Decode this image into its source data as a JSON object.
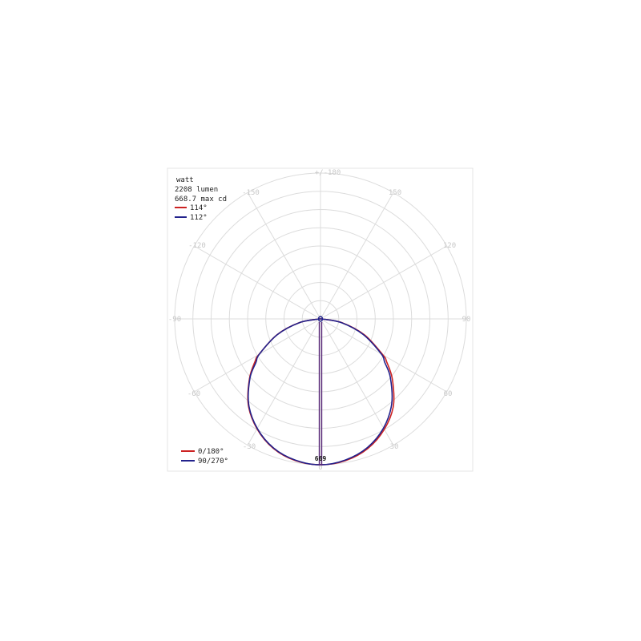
{
  "chart_data": {
    "type": "polar",
    "info": {
      "line1": "watt",
      "line2": "2208 lumen",
      "line3": "668.7 max cd"
    },
    "beam_legend": [
      {
        "label": "114°",
        "color": "#cc2222"
      },
      {
        "label": "112°",
        "color": "#22228c"
      }
    ],
    "plane_legend": [
      {
        "label": "0/180°",
        "color": "#cc2222"
      },
      {
        "label": "90/270°",
        "color": "#22228c"
      }
    ],
    "angle_ticks": {
      "top": "+/-180",
      "upper_left": "-150",
      "upper_right": "150",
      "mid_upper_left": "-120",
      "mid_upper_right": "120",
      "left": "-90",
      "right": "90",
      "lower_left": "-60",
      "lower_right": "60",
      "bottom_left": "-30",
      "bottom_right": "30",
      "bottom": "0"
    },
    "max_label": "669",
    "max_cd": 668.7,
    "ring_count": 8,
    "series": [
      {
        "name": "0/180°",
        "color": "#cc2222",
        "angles_deg": [
          0,
          10,
          20,
          30,
          40,
          50,
          57,
          60,
          70,
          80,
          90
        ],
        "candela_pos": [
          669,
          660,
          633,
          585,
          520,
          430,
          362,
          330,
          215,
          100,
          5
        ],
        "candela_neg": [
          669,
          660,
          632,
          582,
          515,
          425,
          358,
          326,
          212,
          98,
          5
        ]
      },
      {
        "name": "90/270°",
        "color": "#22228c",
        "angles_deg": [
          0,
          10,
          20,
          30,
          40,
          50,
          56,
          60,
          70,
          80,
          90
        ],
        "candela_pos": [
          669,
          657,
          628,
          578,
          508,
          418,
          355,
          322,
          208,
          96,
          5
        ],
        "candela_neg": [
          669,
          658,
          630,
          580,
          512,
          422,
          357,
          324,
          210,
          97,
          5
        ]
      }
    ]
  }
}
